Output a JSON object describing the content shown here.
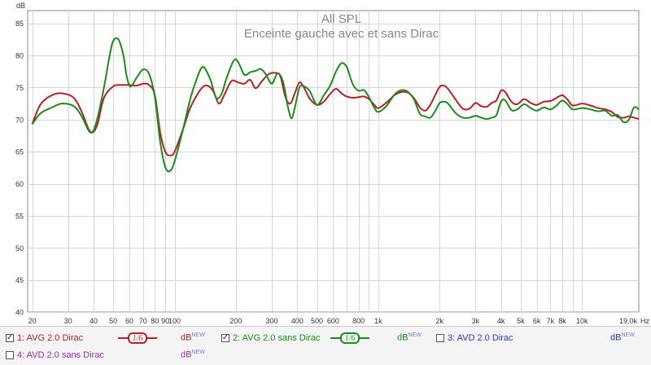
{
  "chart_data": {
    "type": "line",
    "title": "All SPL",
    "subtitle": "Enceinte gauche avec et sans Dirac",
    "ylabel": "dB",
    "xunit": "Hz",
    "xscale": "log",
    "xlim": [
      19,
      19000
    ],
    "ylim": [
      40,
      87
    ],
    "grid": true,
    "x_tick_labels": [
      {
        "v": 20,
        "t": "20"
      },
      {
        "v": 30,
        "t": "30"
      },
      {
        "v": 40,
        "t": "40"
      },
      {
        "v": 50,
        "t": "50"
      },
      {
        "v": 60,
        "t": "60"
      },
      {
        "v": 70,
        "t": "70"
      },
      {
        "v": 80,
        "t": "80"
      },
      {
        "v": 90,
        "t": "90"
      },
      {
        "v": 100,
        "t": "100"
      },
      {
        "v": 200,
        "t": "200"
      },
      {
        "v": 300,
        "t": "300"
      },
      {
        "v": 400,
        "t": "400"
      },
      {
        "v": 500,
        "t": "500"
      },
      {
        "v": 600,
        "t": "600"
      },
      {
        "v": 800,
        "t": "800"
      },
      {
        "v": 1000,
        "t": "1k"
      },
      {
        "v": 2000,
        "t": "2k"
      },
      {
        "v": 3000,
        "t": "3k"
      },
      {
        "v": 4000,
        "t": "4k"
      },
      {
        "v": 5000,
        "t": "5k"
      },
      {
        "v": 6000,
        "t": "6k"
      },
      {
        "v": 7000,
        "t": "7k"
      },
      {
        "v": 8000,
        "t": "8k"
      },
      {
        "v": 10000,
        "t": "10k"
      },
      {
        "v": 19000,
        "t": "19,0k"
      }
    ],
    "y_ticks": [
      40,
      45,
      50,
      55,
      60,
      65,
      70,
      75,
      80,
      85
    ],
    "series": [
      {
        "name": "1: AVG 2.0 Dirac",
        "color": "#b52027",
        "points": [
          [
            20,
            69.3
          ],
          [
            22,
            72.4
          ],
          [
            25,
            73.8
          ],
          [
            28,
            74.1
          ],
          [
            32,
            73.4
          ],
          [
            35,
            71.2
          ],
          [
            38,
            68.4
          ],
          [
            40,
            68.1
          ],
          [
            42,
            69.5
          ],
          [
            45,
            73.4
          ],
          [
            50,
            75.2
          ],
          [
            55,
            75.4
          ],
          [
            60,
            75.4
          ],
          [
            65,
            75.3
          ],
          [
            70,
            75.6
          ],
          [
            75,
            75.4
          ],
          [
            80,
            73.8
          ],
          [
            85,
            68.0
          ],
          [
            90,
            65.0
          ],
          [
            95,
            64.4
          ],
          [
            100,
            65.0
          ],
          [
            110,
            68.5
          ],
          [
            120,
            72.0
          ],
          [
            135,
            74.8
          ],
          [
            145,
            75.3
          ],
          [
            155,
            74.4
          ],
          [
            165,
            72.5
          ],
          [
            175,
            73.8
          ],
          [
            190,
            76.0
          ],
          [
            205,
            75.8
          ],
          [
            220,
            75.6
          ],
          [
            235,
            76.2
          ],
          [
            250,
            74.9
          ],
          [
            270,
            76.1
          ],
          [
            290,
            77.1
          ],
          [
            310,
            77.3
          ],
          [
            330,
            76.8
          ],
          [
            350,
            73.5
          ],
          [
            370,
            72.5
          ],
          [
            390,
            74.2
          ],
          [
            410,
            75.8
          ],
          [
            430,
            75.1
          ],
          [
            460,
            73.3
          ],
          [
            500,
            72.3
          ],
          [
            540,
            72.8
          ],
          [
            580,
            74.0
          ],
          [
            620,
            74.8
          ],
          [
            660,
            74.1
          ],
          [
            700,
            73.6
          ],
          [
            750,
            73.4
          ],
          [
            800,
            73.5
          ],
          [
            850,
            73.6
          ],
          [
            900,
            73.2
          ],
          [
            950,
            72.4
          ],
          [
            1000,
            71.8
          ],
          [
            1100,
            72.7
          ],
          [
            1200,
            73.8
          ],
          [
            1300,
            74.3
          ],
          [
            1400,
            74.2
          ],
          [
            1500,
            73.3
          ],
          [
            1600,
            71.9
          ],
          [
            1700,
            71.4
          ],
          [
            1800,
            72.3
          ],
          [
            1900,
            73.8
          ],
          [
            2000,
            75.1
          ],
          [
            2100,
            75.3
          ],
          [
            2200,
            74.8
          ],
          [
            2400,
            73.1
          ],
          [
            2600,
            71.7
          ],
          [
            2800,
            71.7
          ],
          [
            3000,
            72.6
          ],
          [
            3200,
            72.1
          ],
          [
            3400,
            72.0
          ],
          [
            3600,
            72.6
          ],
          [
            3800,
            73.0
          ],
          [
            4000,
            74.5
          ],
          [
            4200,
            74.3
          ],
          [
            4500,
            72.8
          ],
          [
            4800,
            72.4
          ],
          [
            5200,
            73.2
          ],
          [
            5600,
            72.6
          ],
          [
            6000,
            72.3
          ],
          [
            6500,
            72.8
          ],
          [
            7000,
            72.9
          ],
          [
            7500,
            73.4
          ],
          [
            8000,
            73.8
          ],
          [
            8500,
            73.1
          ],
          [
            9000,
            72.2
          ],
          [
            10000,
            72.5
          ],
          [
            11000,
            72.2
          ],
          [
            12000,
            71.8
          ],
          [
            13000,
            71.6
          ],
          [
            14000,
            71.2
          ],
          [
            15000,
            70.4
          ],
          [
            16000,
            70.3
          ],
          [
            17000,
            70.5
          ],
          [
            18000,
            70.3
          ],
          [
            19000,
            70.1
          ]
        ]
      },
      {
        "name": "2: AVG 2.0 sans Dirac",
        "color": "#198c19",
        "points": [
          [
            20,
            69.3
          ],
          [
            22,
            71.0
          ],
          [
            25,
            71.9
          ],
          [
            28,
            72.5
          ],
          [
            32,
            72.1
          ],
          [
            35,
            70.5
          ],
          [
            38,
            68.2
          ],
          [
            40,
            68.3
          ],
          [
            42,
            70.5
          ],
          [
            45,
            75.0
          ],
          [
            48,
            80.0
          ],
          [
            50,
            82.3
          ],
          [
            53,
            82.5
          ],
          [
            56,
            80.1
          ],
          [
            58,
            77.0
          ],
          [
            60,
            75.3
          ],
          [
            62,
            75.4
          ],
          [
            65,
            76.5
          ],
          [
            70,
            77.8
          ],
          [
            75,
            77.1
          ],
          [
            80,
            73.5
          ],
          [
            85,
            66.5
          ],
          [
            90,
            62.6
          ],
          [
            95,
            62.0
          ],
          [
            100,
            63.5
          ],
          [
            110,
            68.5
          ],
          [
            120,
            73.5
          ],
          [
            130,
            76.8
          ],
          [
            135,
            78.0
          ],
          [
            140,
            78.1
          ],
          [
            150,
            76.2
          ],
          [
            160,
            73.4
          ],
          [
            170,
            74.0
          ],
          [
            180,
            76.5
          ],
          [
            195,
            79.2
          ],
          [
            205,
            79.0
          ],
          [
            220,
            77.0
          ],
          [
            235,
            77.4
          ],
          [
            250,
            77.6
          ],
          [
            265,
            77.9
          ],
          [
            280,
            77.1
          ],
          [
            300,
            75.6
          ],
          [
            320,
            77.2
          ],
          [
            340,
            76.0
          ],
          [
            360,
            72.0
          ],
          [
            375,
            70.2
          ],
          [
            390,
            72.0
          ],
          [
            410,
            75.0
          ],
          [
            430,
            75.2
          ],
          [
            460,
            74.5
          ],
          [
            500,
            72.3
          ],
          [
            540,
            73.8
          ],
          [
            580,
            75.3
          ],
          [
            620,
            77.5
          ],
          [
            660,
            78.8
          ],
          [
            700,
            78.2
          ],
          [
            750,
            75.5
          ],
          [
            800,
            74.5
          ],
          [
            850,
            74.6
          ],
          [
            900,
            73.5
          ],
          [
            950,
            72.0
          ],
          [
            1000,
            71.2
          ],
          [
            1100,
            72.2
          ],
          [
            1200,
            73.9
          ],
          [
            1300,
            74.6
          ],
          [
            1400,
            74.3
          ],
          [
            1500,
            73.1
          ],
          [
            1600,
            70.9
          ],
          [
            1700,
            70.5
          ],
          [
            1800,
            70.3
          ],
          [
            1900,
            71.3
          ],
          [
            2000,
            72.6
          ],
          [
            2100,
            72.8
          ],
          [
            2200,
            72.5
          ],
          [
            2400,
            71.0
          ],
          [
            2600,
            70.3
          ],
          [
            2800,
            70.3
          ],
          [
            3000,
            70.6
          ],
          [
            3200,
            70.3
          ],
          [
            3400,
            70.1
          ],
          [
            3600,
            70.3
          ],
          [
            3800,
            70.7
          ],
          [
            4000,
            72.8
          ],
          [
            4200,
            73.0
          ],
          [
            4500,
            71.5
          ],
          [
            4800,
            71.6
          ],
          [
            5200,
            72.4
          ],
          [
            5600,
            71.8
          ],
          [
            6000,
            71.4
          ],
          [
            6500,
            71.9
          ],
          [
            7000,
            71.6
          ],
          [
            7500,
            72.2
          ],
          [
            8000,
            73.0
          ],
          [
            8500,
            72.4
          ],
          [
            9000,
            71.6
          ],
          [
            10000,
            71.8
          ],
          [
            11000,
            71.6
          ],
          [
            12000,
            71.3
          ],
          [
            13000,
            71.4
          ],
          [
            14000,
            70.6
          ],
          [
            15000,
            70.7
          ],
          [
            16000,
            69.6
          ],
          [
            17000,
            70.0
          ],
          [
            18000,
            71.9
          ],
          [
            19000,
            71.6
          ]
        ]
      }
    ]
  },
  "legend": {
    "entries": [
      {
        "num": "1",
        "label": "AVG 2.0 Dirac",
        "checked": true,
        "color": "#b52027",
        "smoothing": "1/6",
        "db": "dB",
        "db_sup": "NEW"
      },
      {
        "num": "2",
        "label": "AVG 2.0 sans Dirac",
        "checked": true,
        "color": "#198c19",
        "smoothing": "1/6",
        "db": "dB",
        "db_sup": "NEW"
      },
      {
        "num": "3",
        "label": "AVD 2.0 Dirac",
        "checked": false,
        "color": "#2c3db5",
        "db": "dB",
        "db_sup": "NEW"
      },
      {
        "num": "4",
        "label": "AVD 2.0 sans Dirac",
        "checked": false,
        "color": "#a12ab0",
        "db": "dB",
        "db_sup": "NEW"
      }
    ]
  }
}
